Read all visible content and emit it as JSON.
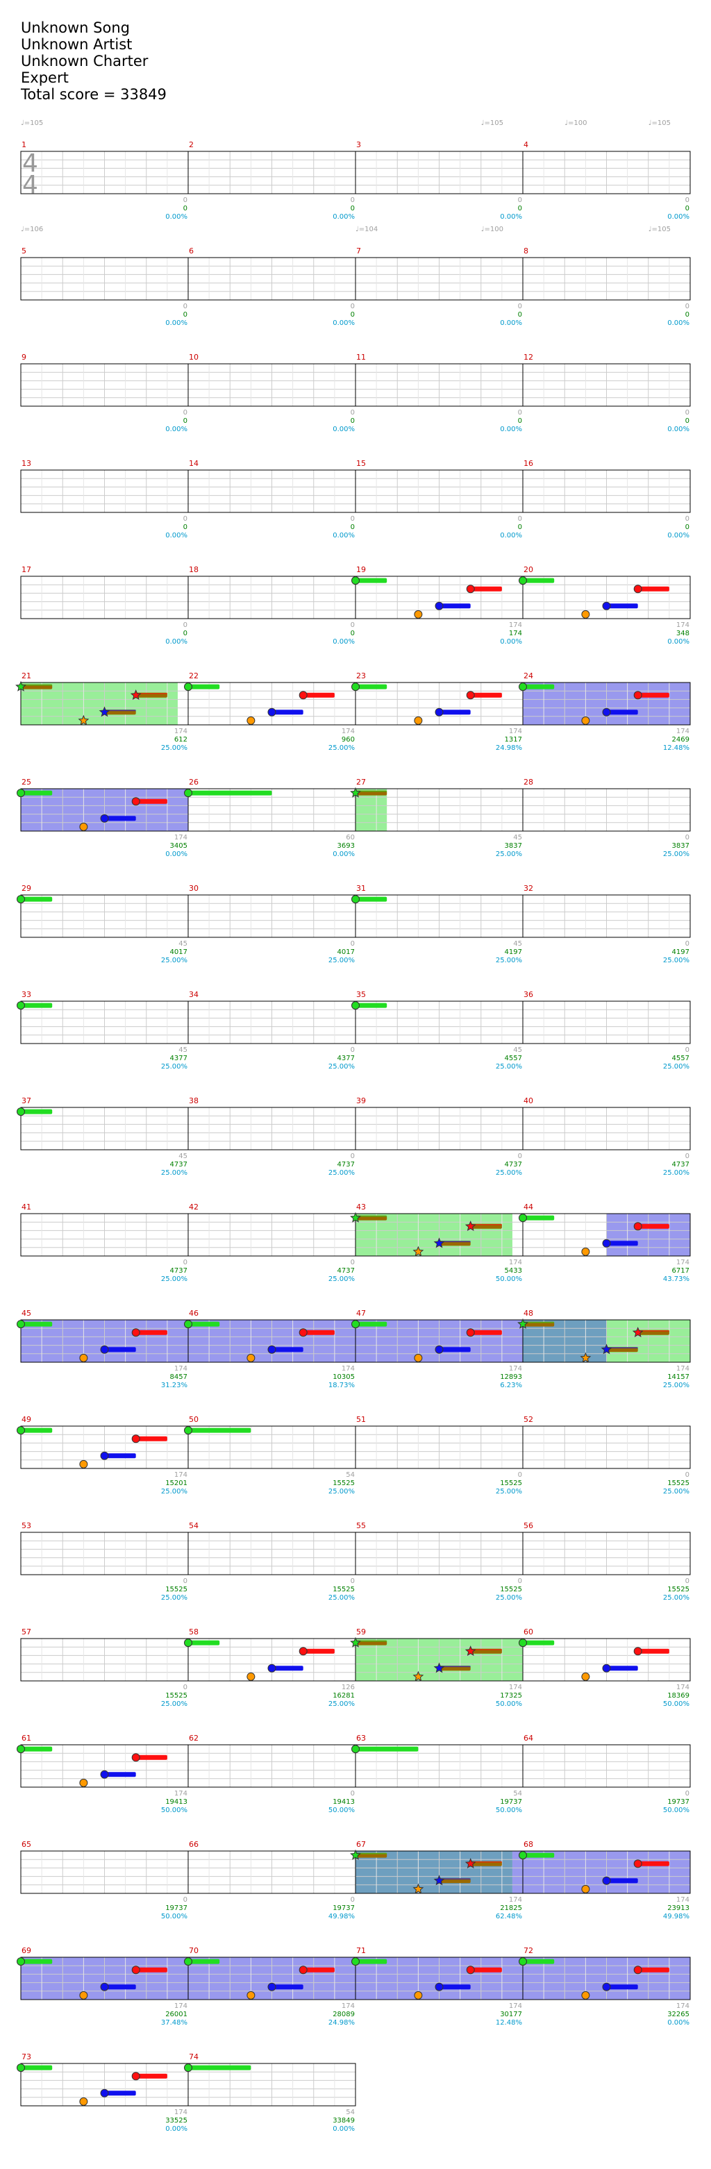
{
  "song": {
    "title": "Unknown Song",
    "artist": "Unknown Artist",
    "charter": "Unknown Charter",
    "difficulty": "Expert",
    "total_score": "Total score = 33849"
  },
  "time_signature": {
    "numerator": "4",
    "denominator": "4"
  },
  "rows": [
    {
      "measures": [
        1,
        2,
        3,
        4
      ],
      "tempos": [
        {
          "beat": 0,
          "label": "♩=105"
        },
        {
          "beat": 11,
          "label": "♩=105"
        },
        {
          "beat": 13,
          "label": "♩=100"
        },
        {
          "beat": 15,
          "label": "♩=105"
        },
        {
          "beat": 24,
          "label": "♩=104"
        }
      ],
      "stats": [
        {
          "sp": "0",
          "score": "0",
          "pct": "0.00%"
        },
        {
          "sp": "0",
          "score": "0",
          "pct": "0.00%"
        },
        {
          "sp": "0",
          "score": "0",
          "pct": "0.00%"
        },
        {
          "sp": "0",
          "score": "0",
          "pct": "0.00%"
        }
      ]
    },
    {
      "measures": [
        5,
        6,
        7,
        8
      ],
      "tempos": [
        {
          "beat": 0,
          "label": "♩=106"
        },
        {
          "beat": 8,
          "label": "♩=104"
        },
        {
          "beat": 11,
          "label": "♩=100"
        },
        {
          "beat": 15,
          "label": "♩=105"
        }
      ],
      "stats": [
        {
          "sp": "0",
          "score": "0",
          "pct": "0.00%"
        },
        {
          "sp": "0",
          "score": "0",
          "pct": "0.00%"
        },
        {
          "sp": "0",
          "score": "0",
          "pct": "0.00%"
        },
        {
          "sp": "0",
          "score": "0",
          "pct": "0.00%"
        }
      ]
    },
    {
      "measures": [
        9,
        10,
        11,
        12
      ],
      "tempos": [],
      "stats": [
        {
          "sp": "0",
          "score": "0",
          "pct": "0.00%"
        },
        {
          "sp": "0",
          "score": "0",
          "pct": "0.00%"
        },
        {
          "sp": "0",
          "score": "0",
          "pct": "0.00%"
        },
        {
          "sp": "0",
          "score": "0",
          "pct": "0.00%"
        }
      ]
    },
    {
      "measures": [
        13,
        14,
        15,
        16
      ],
      "tempos": [],
      "stats": [
        {
          "sp": "0",
          "score": "0",
          "pct": "0.00%"
        },
        {
          "sp": "0",
          "score": "0",
          "pct": "0.00%"
        },
        {
          "sp": "0",
          "score": "0",
          "pct": "0.00%"
        },
        {
          "sp": "0",
          "score": "0",
          "pct": "0.00%"
        }
      ]
    },
    {
      "measures": [
        17,
        18,
        19,
        20
      ],
      "tempos": [],
      "stats": [
        {
          "sp": "0",
          "score": "0",
          "pct": "0.00%"
        },
        {
          "sp": "0",
          "score": "0",
          "pct": "0.00%"
        },
        {
          "sp": "174",
          "score": "174",
          "pct": "0.00%"
        },
        {
          "sp": "174",
          "score": "348",
          "pct": "0.00%"
        }
      ]
    },
    {
      "measures": [
        21,
        22,
        23,
        24
      ],
      "tempos": [],
      "stats": [
        {
          "sp": "174",
          "score": "612",
          "pct": "25.00%"
        },
        {
          "sp": "174",
          "score": "960",
          "pct": "25.00%"
        },
        {
          "sp": "174",
          "score": "1317",
          "pct": "24.98%"
        },
        {
          "sp": "174",
          "score": "2469",
          "pct": "12.48%"
        }
      ]
    },
    {
      "measures": [
        25,
        26,
        27,
        28
      ],
      "tempos": [],
      "stats": [
        {
          "sp": "174",
          "score": "3405",
          "pct": "0.00%"
        },
        {
          "sp": "60",
          "score": "3693",
          "pct": "0.00%"
        },
        {
          "sp": "45",
          "score": "3837",
          "pct": "25.00%"
        },
        {
          "sp": "0",
          "score": "3837",
          "pct": "25.00%"
        }
      ]
    },
    {
      "measures": [
        29,
        30,
        31,
        32
      ],
      "tempos": [],
      "stats": [
        {
          "sp": "45",
          "score": "4017",
          "pct": "25.00%"
        },
        {
          "sp": "0",
          "score": "4017",
          "pct": "25.00%"
        },
        {
          "sp": "45",
          "score": "4197",
          "pct": "25.00%"
        },
        {
          "sp": "0",
          "score": "4197",
          "pct": "25.00%"
        }
      ]
    },
    {
      "measures": [
        33,
        34,
        35,
        36
      ],
      "tempos": [],
      "stats": [
        {
          "sp": "45",
          "score": "4377",
          "pct": "25.00%"
        },
        {
          "sp": "0",
          "score": "4377",
          "pct": "25.00%"
        },
        {
          "sp": "45",
          "score": "4557",
          "pct": "25.00%"
        },
        {
          "sp": "0",
          "score": "4557",
          "pct": "25.00%"
        }
      ]
    },
    {
      "measures": [
        37,
        38,
        39,
        40
      ],
      "tempos": [],
      "stats": [
        {
          "sp": "45",
          "score": "4737",
          "pct": "25.00%"
        },
        {
          "sp": "0",
          "score": "4737",
          "pct": "25.00%"
        },
        {
          "sp": "0",
          "score": "4737",
          "pct": "25.00%"
        },
        {
          "sp": "0",
          "score": "4737",
          "pct": "25.00%"
        }
      ]
    },
    {
      "measures": [
        41,
        42,
        43,
        44
      ],
      "tempos": [],
      "stats": [
        {
          "sp": "0",
          "score": "4737",
          "pct": "25.00%"
        },
        {
          "sp": "0",
          "score": "4737",
          "pct": "25.00%"
        },
        {
          "sp": "174",
          "score": "5433",
          "pct": "50.00%"
        },
        {
          "sp": "174",
          "score": "6717",
          "pct": "43.73%"
        }
      ]
    },
    {
      "measures": [
        45,
        46,
        47,
        48
      ],
      "tempos": [],
      "stats": [
        {
          "sp": "174",
          "score": "8457",
          "pct": "31.23%"
        },
        {
          "sp": "174",
          "score": "10305",
          "pct": "18.73%"
        },
        {
          "sp": "174",
          "score": "12893",
          "pct": "6.23%"
        },
        {
          "sp": "174",
          "score": "14157",
          "pct": "25.00%"
        }
      ]
    },
    {
      "measures": [
        49,
        50,
        51,
        52
      ],
      "tempos": [],
      "stats": [
        {
          "sp": "174",
          "score": "15201",
          "pct": "25.00%"
        },
        {
          "sp": "54",
          "score": "15525",
          "pct": "25.00%"
        },
        {
          "sp": "0",
          "score": "15525",
          "pct": "25.00%"
        },
        {
          "sp": "0",
          "score": "15525",
          "pct": "25.00%"
        }
      ]
    },
    {
      "measures": [
        53,
        54,
        55,
        56
      ],
      "tempos": [],
      "stats": [
        {
          "sp": "0",
          "score": "15525",
          "pct": "25.00%"
        },
        {
          "sp": "0",
          "score": "15525",
          "pct": "25.00%"
        },
        {
          "sp": "0",
          "score": "15525",
          "pct": "25.00%"
        },
        {
          "sp": "0",
          "score": "15525",
          "pct": "25.00%"
        }
      ]
    },
    {
      "measures": [
        57,
        58,
        59,
        60
      ],
      "tempos": [],
      "stats": [
        {
          "sp": "0",
          "score": "15525",
          "pct": "25.00%"
        },
        {
          "sp": "126",
          "score": "16281",
          "pct": "25.00%"
        },
        {
          "sp": "174",
          "score": "17325",
          "pct": "50.00%"
        },
        {
          "sp": "174",
          "score": "18369",
          "pct": "50.00%"
        }
      ]
    },
    {
      "measures": [
        61,
        62,
        63,
        64
      ],
      "tempos": [],
      "stats": [
        {
          "sp": "174",
          "score": "19413",
          "pct": "50.00%"
        },
        {
          "sp": "0",
          "score": "19413",
          "pct": "50.00%"
        },
        {
          "sp": "54",
          "score": "19737",
          "pct": "50.00%"
        },
        {
          "sp": "0",
          "score": "19737",
          "pct": "50.00%"
        }
      ]
    },
    {
      "measures": [
        65,
        66,
        67,
        68
      ],
      "tempos": [],
      "stats": [
        {
          "sp": "0",
          "score": "19737",
          "pct": "50.00%"
        },
        {
          "sp": "0",
          "score": "19737",
          "pct": "49.98%"
        },
        {
          "sp": "174",
          "score": "21825",
          "pct": "62.48%"
        },
        {
          "sp": "174",
          "score": "23913",
          "pct": "49.98%"
        }
      ]
    },
    {
      "measures": [
        69,
        70,
        71,
        72
      ],
      "tempos": [],
      "stats": [
        {
          "sp": "174",
          "score": "26001",
          "pct": "37.48%"
        },
        {
          "sp": "174",
          "score": "28089",
          "pct": "24.98%"
        },
        {
          "sp": "174",
          "score": "30177",
          "pct": "12.48%"
        },
        {
          "sp": "174",
          "score": "32265",
          "pct": "0.00%"
        }
      ]
    },
    {
      "measures": [
        73,
        74
      ],
      "tempos": [],
      "stats": [
        {
          "sp": "174",
          "score": "33525",
          "pct": "0.00%"
        },
        {
          "sp": "54",
          "score": "33849",
          "pct": "0.00%"
        }
      ]
    }
  ],
  "colors": {
    "green": "#22dd22",
    "red": "#ff1010",
    "yellow": "#e8e800",
    "blue": "#1010ee",
    "orange": "#ff9900",
    "sp_sustain": "#9a6a00",
    "solo_green": "#99ee99",
    "activation_blue": "#9999ee",
    "overlap": "#6e9fbf",
    "measure_number": "#cc0000",
    "score": "#008000",
    "sp_value": "#a0a0a0",
    "percent": "#0099cc"
  },
  "groups": {
    "A": {
      "notes": [
        {
          "b": 0,
          "lane": "green",
          "len": 0.75
        },
        {
          "b": 1.5,
          "lane": "orange",
          "len": 0
        },
        {
          "b": 2,
          "lane": "blue",
          "len": 0.75
        },
        {
          "b": 2.75,
          "lane": "red",
          "len": 0.75
        }
      ]
    },
    "Astar": {
      "notes": [
        {
          "b": 0,
          "lane": "green",
          "len": 0.75,
          "star": true
        },
        {
          "b": 1.5,
          "lane": "orange",
          "len": 0,
          "star": true
        },
        {
          "b": 2,
          "lane": "blue",
          "len": 0.75,
          "star": true
        },
        {
          "b": 2.75,
          "lane": "red",
          "len": 0.75,
          "star": true
        }
      ]
    }
  },
  "charts": [
    {
      "row": 4,
      "groups": [
        {
          "type": "A",
          "start": 8
        },
        {
          "type": "A",
          "start": 12
        }
      ],
      "extras": []
    },
    {
      "row": 5,
      "groups": [
        {
          "type": "Astar",
          "start": 0
        },
        {
          "type": "A",
          "start": 4
        },
        {
          "type": "A",
          "start": 8
        },
        {
          "type": "A",
          "start": 12
        }
      ],
      "extras": [],
      "regions": [
        {
          "from": 0,
          "to": 3.75,
          "kind": "solo"
        },
        {
          "from": 12,
          "to": 16,
          "kind": "activation"
        }
      ]
    },
    {
      "row": 6,
      "groups": [
        {
          "type": "A",
          "start": 0
        }
      ],
      "extras": [
        {
          "b": 4,
          "lane": "green",
          "len": 2
        },
        {
          "b": 8,
          "lane": "green",
          "len": 0.75,
          "star": true
        }
      ],
      "regions": [
        {
          "from": 0,
          "to": 4,
          "kind": "activation"
        },
        {
          "from": 8,
          "to": 8.75,
          "kind": "solo"
        }
      ]
    },
    {
      "row": 7,
      "groups": [],
      "extras": [
        {
          "b": 0,
          "lane": "green",
          "len": 0.75
        },
        {
          "b": 8,
          "lane": "green",
          "len": 0.75
        }
      ]
    },
    {
      "row": 8,
      "groups": [],
      "extras": [
        {
          "b": 0,
          "lane": "green",
          "len": 0.75
        },
        {
          "b": 8,
          "lane": "green",
          "len": 0.75
        }
      ]
    },
    {
      "row": 9,
      "groups": [],
      "extras": [
        {
          "b": 0,
          "lane": "green",
          "len": 0.75
        }
      ]
    },
    {
      "row": 10,
      "groups": [
        {
          "type": "Astar",
          "start": 8
        },
        {
          "type": "A",
          "start": 12
        }
      ],
      "extras": [],
      "regions": [
        {
          "from": 8,
          "to": 11.75,
          "kind": "solo"
        },
        {
          "from": 14,
          "to": 16,
          "kind": "activation"
        }
      ]
    },
    {
      "row": 11,
      "groups": [
        {
          "type": "A",
          "start": 0
        },
        {
          "type": "A",
          "start": 4
        },
        {
          "type": "A",
          "start": 8
        },
        {
          "type": "Astar",
          "start": 12
        }
      ],
      "extras": [],
      "regions": [
        {
          "from": 0,
          "to": 12,
          "kind": "activation"
        },
        {
          "from": 12,
          "to": 14,
          "kind": "overlap"
        },
        {
          "from": 14,
          "to": 16,
          "kind": "solo"
        }
      ]
    },
    {
      "row": 12,
      "groups": [
        {
          "type": "A",
          "start": 0
        }
      ],
      "extras": [
        {
          "b": 4,
          "lane": "green",
          "len": 1.5
        }
      ]
    },
    {
      "row": 14,
      "groups": [
        {
          "type": "A",
          "start": 4
        },
        {
          "type": "Astar",
          "start": 8
        },
        {
          "type": "A",
          "start": 12
        }
      ],
      "extras": [],
      "regions": [
        {
          "from": 8,
          "to": 12,
          "kind": "solo"
        }
      ]
    },
    {
      "row": 15,
      "groups": [
        {
          "type": "A",
          "start": 0
        }
      ],
      "extras": [
        {
          "b": 8,
          "lane": "green",
          "len": 1.5
        }
      ]
    },
    {
      "row": 16,
      "groups": [
        {
          "type": "Astar",
          "start": 8
        },
        {
          "type": "A",
          "start": 12
        }
      ],
      "extras": [],
      "regions": [
        {
          "from": 8,
          "to": 11.75,
          "kind": "overlap"
        },
        {
          "from": 11.75,
          "to": 16,
          "kind": "activation"
        }
      ]
    },
    {
      "row": 17,
      "groups": [
        {
          "type": "A",
          "start": 0
        },
        {
          "type": "A",
          "start": 4
        },
        {
          "type": "A",
          "start": 8
        },
        {
          "type": "A",
          "start": 12
        }
      ],
      "extras": [],
      "regions": [
        {
          "from": 0,
          "to": 16,
          "kind": "activation"
        }
      ]
    },
    {
      "row": 18,
      "groups": [
        {
          "type": "A",
          "start": 0
        }
      ],
      "extras": [
        {
          "b": 4,
          "lane": "green",
          "len": 1.5
        }
      ]
    }
  ]
}
